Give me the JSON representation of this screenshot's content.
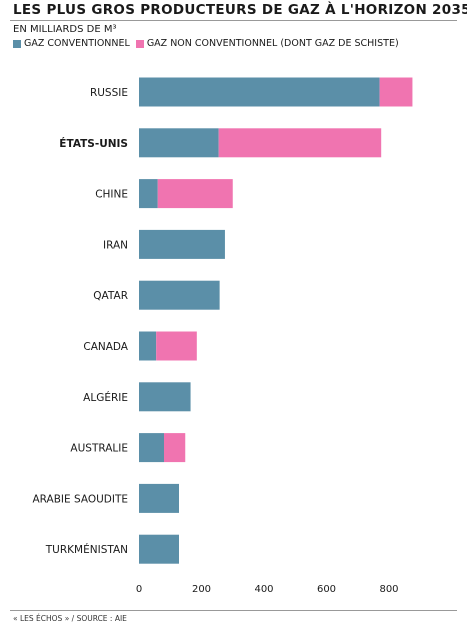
{
  "header": {
    "title": "LES PLUS GROS PRODUCTEURS DE GAZ À L'HORIZON 2035",
    "unit": "EN MILLIARDS DE M³"
  },
  "legend": [
    {
      "label": "GAZ CONVENTIONNEL",
      "color": "#5b8fa8"
    },
    {
      "label": "GAZ NON CONVENTIONNEL (DONT GAZ DE SCHISTE)",
      "color": "#f074b0"
    }
  ],
  "footer": {
    "source": "« LES ÉCHOS » / SOURCE : AIE"
  },
  "chart_data": {
    "type": "bar",
    "orientation": "horizontal",
    "stacked": true,
    "categories": [
      "RUSSIE",
      "ÉTATS-UNIS",
      "CHINE",
      "IRAN",
      "QATAR",
      "CANADA",
      "ALGÉRIE",
      "AUSTRALIE",
      "ARABIE SAOUDITE",
      "TURKMÉNISTAN"
    ],
    "highlight": "ÉTATS-UNIS",
    "series": [
      {
        "name": "GAZ CONVENTIONNEL",
        "color": "#5b8fa8",
        "values": [
          770,
          255,
          60,
          275,
          258,
          55,
          165,
          80,
          128,
          128
        ]
      },
      {
        "name": "GAZ NON CONVENTIONNEL (DONT GAZ DE SCHISTE)",
        "color": "#f074b0",
        "values": [
          105,
          520,
          240,
          0,
          0,
          130,
          0,
          68,
          0,
          0
        ]
      }
    ],
    "xlim": [
      0,
      900
    ],
    "xticks": [
      0,
      200,
      400,
      600,
      800
    ]
  }
}
